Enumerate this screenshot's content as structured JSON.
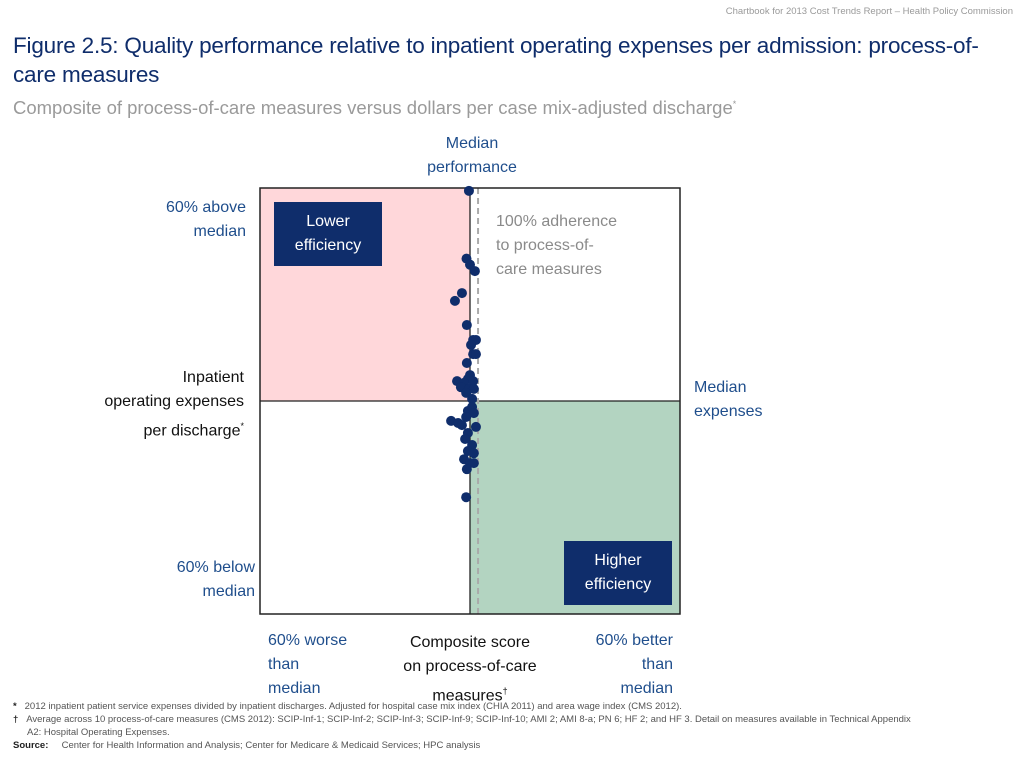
{
  "header_note": "Chartbook for 2013 Cost Trends Report – Health Policy Commission",
  "title": "Figure 2.5: Quality performance relative to inpatient operating expenses per admission: process-of-care measures",
  "subtitle": "Composite of process-of-care measures versus dollars per case mix-adjusted discharge",
  "subtitle_mark": "*",
  "labels": {
    "median_performance_1": "Median",
    "median_performance_2": "performance",
    "above_1": "60% above",
    "above_2": "median",
    "below_1": "60% below",
    "below_2": "median",
    "worse_1": "60% worse",
    "worse_2": "than",
    "worse_3": "median",
    "better_1": "60% better",
    "better_2": "than",
    "better_3": "median",
    "median_expenses_1": "Median",
    "median_expenses_2": "expenses",
    "y_axis_1": "Inpatient",
    "y_axis_2": "operating expenses",
    "y_axis_3": "per discharge",
    "y_axis_mark": "*",
    "x_axis_1": "Composite score",
    "x_axis_2": "on process-of-care",
    "x_axis_3": "measures",
    "x_axis_mark": "†",
    "adherence_1": "100% adherence",
    "adherence_2": "to process-of-",
    "adherence_3": "care measures",
    "lower_eff_1": "Lower",
    "lower_eff_2": "efficiency",
    "higher_eff_1": "Higher",
    "higher_eff_2": "efficiency"
  },
  "colors": {
    "lower_efficiency_quadrant": "#ffd7da",
    "higher_efficiency_quadrant": "#b3d4c1",
    "points": "#0f2d6b",
    "label_boxes": "#0f2d6b",
    "median_text": "#1f4e8c"
  },
  "footnotes": {
    "n1_mark": "*",
    "n1": "2012 inpatient patient service expenses divided by inpatient discharges. Adjusted for hospital case mix index (CHIA 2011) and area wage index (CMS 2012).",
    "n2_mark": "†",
    "n2_line1": "Average across 10 process-of-care measures (CMS 2012): SCIP-Inf-1; SCIP-Inf-2; SCIP-Inf-3; SCIP-Inf-9; SCIP-Inf-10; AMI 2; AMI 8-a; PN 6; HF 2; and HF 3. Detail on measures available in Technical Appendix",
    "n2_line2": "A2: Hospital Operating Expenses.",
    "source_label": "Source:",
    "source": "Center for Health Information and Analysis; Center for Medicare & Medicaid Services; HPC analysis"
  },
  "chart_data": {
    "type": "scatter",
    "xlabel": "Composite score on process-of-care measures",
    "ylabel": "Inpatient operating expenses per discharge",
    "xlim": [
      -60,
      60
    ],
    "ylim": [
      -60,
      60
    ],
    "x_median": 0,
    "y_median": 0,
    "x_full_adherence": 2.3,
    "quadrants": {
      "top_left": "Lower efficiency",
      "bottom_right": "Higher efficiency"
    },
    "points": [
      {
        "x": -0.3,
        "y": 59.2
      },
      {
        "x": -1.0,
        "y": 40.1
      },
      {
        "x": 0.0,
        "y": 38.4
      },
      {
        "x": 1.4,
        "y": 36.6
      },
      {
        "x": -2.3,
        "y": 30.4
      },
      {
        "x": -4.3,
        "y": 28.2
      },
      {
        "x": -0.9,
        "y": 21.4
      },
      {
        "x": 0.9,
        "y": 17.2
      },
      {
        "x": 1.7,
        "y": 17.2
      },
      {
        "x": 0.3,
        "y": 15.8
      },
      {
        "x": 0.9,
        "y": 13.2
      },
      {
        "x": 1.7,
        "y": 13.2
      },
      {
        "x": -0.9,
        "y": 10.7
      },
      {
        "x": 0.0,
        "y": 7.3
      },
      {
        "x": -0.6,
        "y": 6.2
      },
      {
        "x": -3.7,
        "y": 5.6
      },
      {
        "x": -1.7,
        "y": 5.1
      },
      {
        "x": 0.9,
        "y": 5.6
      },
      {
        "x": -2.6,
        "y": 3.9
      },
      {
        "x": -0.3,
        "y": 3.4
      },
      {
        "x": 1.1,
        "y": 3.4
      },
      {
        "x": -1.1,
        "y": 2.3
      },
      {
        "x": 0.6,
        "y": 0.6
      },
      {
        "x": -0.6,
        "y": -2.8
      },
      {
        "x": 0.6,
        "y": -1.7
      },
      {
        "x": 1.1,
        "y": -3.4
      },
      {
        "x": -1.1,
        "y": -4.5
      },
      {
        "x": -5.4,
        "y": -5.6
      },
      {
        "x": -3.4,
        "y": -6.2
      },
      {
        "x": -2.3,
        "y": -6.8
      },
      {
        "x": 1.7,
        "y": -7.3
      },
      {
        "x": -0.6,
        "y": -9.0
      },
      {
        "x": -1.4,
        "y": -10.7
      },
      {
        "x": 0.6,
        "y": -12.4
      },
      {
        "x": -0.6,
        "y": -14.1
      },
      {
        "x": 1.1,
        "y": -14.7
      },
      {
        "x": -1.7,
        "y": -16.4
      },
      {
        "x": 0.0,
        "y": -17.5
      },
      {
        "x": 1.1,
        "y": -17.5
      },
      {
        "x": -0.9,
        "y": -19.2
      },
      {
        "x": -1.1,
        "y": -27.1
      }
    ]
  }
}
